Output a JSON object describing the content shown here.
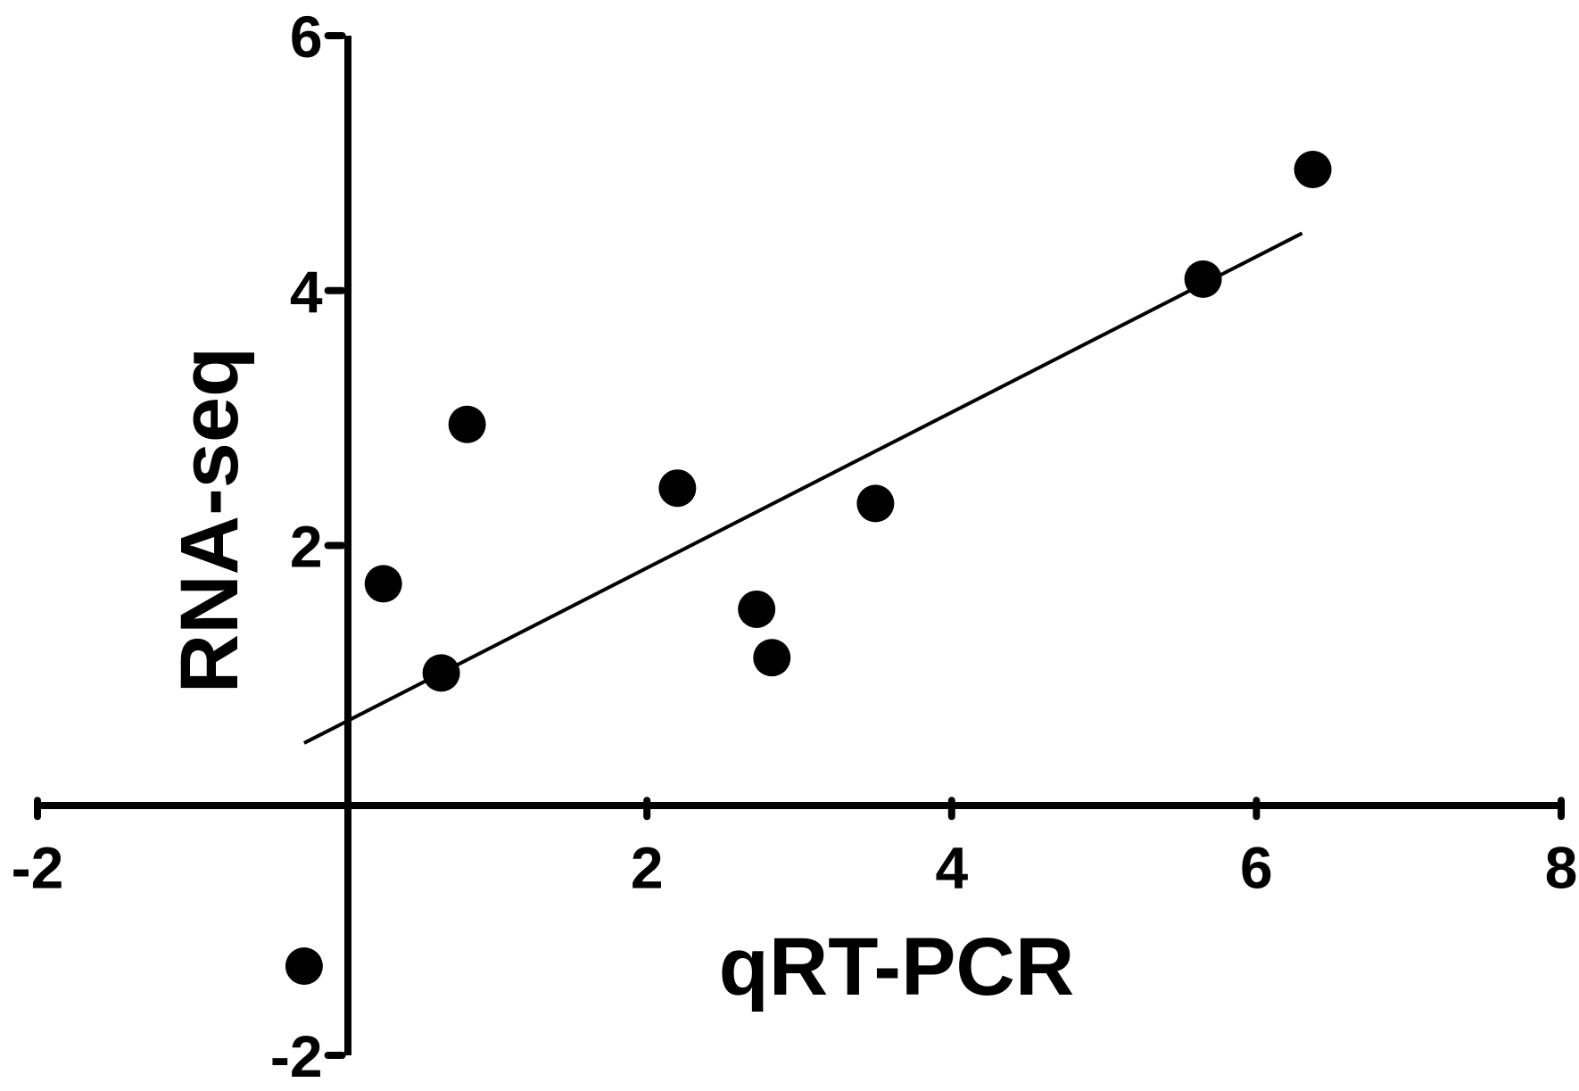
{
  "chart_data": {
    "type": "scatter",
    "xlabel": "qRT-PCR",
    "ylabel": "RNA-seq",
    "xlim": [
      -2,
      8
    ],
    "ylim": [
      -2,
      6
    ],
    "xticks": [
      "-2",
      "2",
      "4",
      "6",
      "8"
    ],
    "yticks": [
      "-2",
      "2",
      "4",
      "6"
    ],
    "grid": false,
    "points": [
      {
        "x": -0.25,
        "y": -1.3
      },
      {
        "x": 0.27,
        "y": 1.7
      },
      {
        "x": 0.65,
        "y": 1.0
      },
      {
        "x": 0.82,
        "y": 2.95
      },
      {
        "x": 2.2,
        "y": 2.45
      },
      {
        "x": 2.72,
        "y": 1.5
      },
      {
        "x": 2.82,
        "y": 1.12
      },
      {
        "x": 3.5,
        "y": 2.33
      },
      {
        "x": 5.65,
        "y": 4.09
      },
      {
        "x": 6.37,
        "y": 4.95
      }
    ],
    "fit_line": {
      "x": [
        -0.25,
        6.3
      ],
      "y": [
        0.45,
        4.45
      ]
    },
    "colors": {
      "points": "#000000",
      "axes": "#000000",
      "fit_line": "#000000"
    }
  }
}
